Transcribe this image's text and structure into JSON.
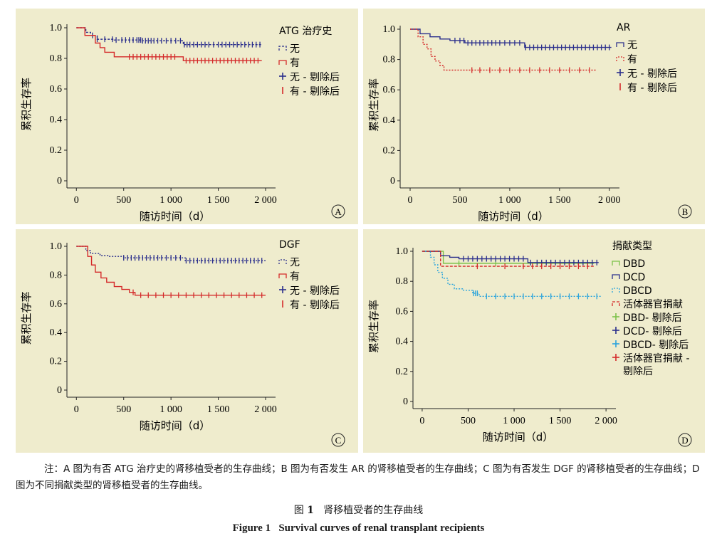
{
  "chart_data": [
    {
      "type": "line",
      "panel_label": "A",
      "ylabel": "累积生存率",
      "xlabel": "随访时间（d）",
      "xticks": [
        "0",
        "500",
        "1 000",
        "1 500",
        "2 000"
      ],
      "yticks": [
        "0",
        "0.2",
        "0.4",
        "0.6",
        "0.8",
        "1.0"
      ],
      "xlim": [
        -100,
        2030
      ],
      "ylim": [
        0,
        1.0
      ],
      "legend_title": "ATG 治疗史",
      "legend_placement": "right",
      "legend": [
        "无",
        "有",
        "无 - 剔除后",
        "有 - 剔除后"
      ],
      "series": [
        {
          "name": "无",
          "color": "#2b2f8c",
          "dash": "3,2",
          "x": [
            0,
            100,
            150,
            220,
            400,
            700,
            1130,
            1960
          ],
          "y": [
            1.0,
            0.97,
            0.95,
            0.925,
            0.92,
            0.915,
            0.89,
            0.89
          ],
          "censored": [
            170,
            220,
            300,
            380,
            420,
            480,
            520,
            560,
            600,
            640,
            660,
            680,
            700,
            730,
            760,
            790,
            820,
            860,
            900,
            950,
            1000,
            1050,
            1100,
            1140,
            1170,
            1200,
            1240,
            1280,
            1320,
            1360,
            1400,
            1450,
            1500,
            1540,
            1580,
            1620,
            1660,
            1700,
            1740,
            1780,
            1820,
            1860,
            1900,
            1940
          ]
        },
        {
          "name": "有",
          "color": "#d42a2a",
          "dash": "",
          "x": [
            0,
            90,
            200,
            250,
            300,
            400,
            1130,
            1960
          ],
          "y": [
            1.0,
            0.95,
            0.9,
            0.87,
            0.84,
            0.81,
            0.785,
            0.785
          ],
          "censored": [
            560,
            600,
            640,
            680,
            720,
            760,
            800,
            840,
            880,
            920,
            960,
            1000,
            1040,
            1160,
            1200,
            1240,
            1280,
            1320,
            1360,
            1400,
            1440,
            1480,
            1520,
            1560,
            1600,
            1640,
            1680,
            1720,
            1760,
            1800,
            1840,
            1880,
            1920
          ]
        }
      ]
    },
    {
      "type": "line",
      "panel_label": "B",
      "ylabel": "累积生存率",
      "xlabel": "随访时间（d）",
      "xticks": [
        "0",
        "500",
        "1 000",
        "1 500",
        "2 000"
      ],
      "yticks": [
        "0",
        "0.2",
        "0.4",
        "0.6",
        "0.8",
        "1.0"
      ],
      "xlim": [
        -100,
        2030
      ],
      "ylim": [
        0,
        1.0
      ],
      "legend_title": "AR",
      "legend_placement": "right",
      "legend": [
        "无",
        "有",
        "无 - 剔除后",
        "有 - 剔除后"
      ],
      "series": [
        {
          "name": "无",
          "color": "#2b2f8c",
          "dash": "",
          "x": [
            0,
            100,
            200,
            300,
            400,
            550,
            1150,
            2020
          ],
          "y": [
            1.0,
            0.97,
            0.95,
            0.935,
            0.925,
            0.91,
            0.88,
            0.88
          ],
          "censored": [
            450,
            500,
            540,
            580,
            620,
            660,
            700,
            740,
            780,
            820,
            860,
            900,
            950,
            1000,
            1050,
            1100,
            1160,
            1200,
            1240,
            1280,
            1320,
            1360,
            1400,
            1440,
            1480,
            1520,
            1560,
            1600,
            1640,
            1680,
            1720,
            1760,
            1800,
            1840,
            1880,
            1920,
            1960,
            2000
          ]
        },
        {
          "name": "有",
          "color": "#d42a2a",
          "dash": "2,2",
          "x": [
            0,
            80,
            130,
            170,
            210,
            250,
            300,
            340,
            1870
          ],
          "y": [
            1.0,
            0.95,
            0.9,
            0.87,
            0.82,
            0.79,
            0.76,
            0.73,
            0.73
          ],
          "censored": [
            620,
            700,
            800,
            900,
            1000,
            1100,
            1200,
            1300,
            1400,
            1500,
            1600,
            1700,
            1800
          ]
        }
      ]
    },
    {
      "type": "line",
      "panel_label": "C",
      "ylabel": "累积生存率",
      "xlabel": "随访时间（d）",
      "xticks": [
        "0",
        "500",
        "1 000",
        "1 500",
        "2 000"
      ],
      "yticks": [
        "0",
        "0.2",
        "0.4",
        "0.6",
        "0.8",
        "1.0"
      ],
      "xlim": [
        -100,
        2030
      ],
      "ylim": [
        0,
        1.0
      ],
      "legend_title": "DGF",
      "legend_placement": "right",
      "legend": [
        "无",
        "有",
        "无 - 剔除后",
        "有 - 剔除后"
      ],
      "series": [
        {
          "name": "无",
          "color": "#2b2f8c",
          "dash": "2,2",
          "x": [
            0,
            100,
            150,
            250,
            350,
            500,
            1150,
            2000
          ],
          "y": [
            1.0,
            0.97,
            0.95,
            0.935,
            0.93,
            0.92,
            0.9,
            0.9
          ],
          "censored": [
            500,
            540,
            580,
            620,
            660,
            700,
            740,
            780,
            820,
            860,
            900,
            950,
            1000,
            1050,
            1100,
            1160,
            1200,
            1240,
            1280,
            1320,
            1360,
            1400,
            1440,
            1480,
            1520,
            1560,
            1600,
            1640,
            1680,
            1720,
            1760,
            1800,
            1840,
            1880,
            1920,
            1960
          ]
        },
        {
          "name": "有",
          "color": "#d42a2a",
          "dash": "",
          "x": [
            0,
            120,
            160,
            200,
            260,
            320,
            400,
            480,
            560,
            620,
            2000
          ],
          "y": [
            1.0,
            0.93,
            0.87,
            0.82,
            0.78,
            0.75,
            0.72,
            0.7,
            0.68,
            0.66,
            0.66
          ],
          "censored": [
            600,
            680,
            760,
            840,
            920,
            1000,
            1080,
            1160,
            1240,
            1320,
            1400,
            1480,
            1560,
            1640,
            1720,
            1800,
            1880,
            1960
          ]
        }
      ]
    },
    {
      "type": "line",
      "panel_label": "D",
      "ylabel": "累积生存率",
      "xlabel": "随访时间（d）",
      "xticks": [
        "0",
        "500",
        "1 000",
        "1 500",
        "2 000"
      ],
      "yticks": [
        "0",
        "0.2",
        "0.4",
        "0.6",
        "0.8",
        "1.0"
      ],
      "xlim": [
        -100,
        2030
      ],
      "ylim": [
        0,
        1.0
      ],
      "legend_title": "捐献类型",
      "legend_placement": "right",
      "legend": [
        "DBD",
        "DCD",
        "DBCD",
        "活体器官捐献",
        "DBD- 剔除后",
        "DCD- 剔除后",
        "DBCD- 剔除后",
        "活体器官捐献 -\n剔除后"
      ],
      "series": [
        {
          "name": "DBD",
          "color": "#7cc14a",
          "dash": "",
          "x": [
            0,
            230,
            1000,
            1150,
            1870
          ],
          "y": [
            1.0,
            0.92,
            0.92,
            0.92,
            0.92
          ],
          "censored": [
            400,
            800,
            1300,
            1600
          ]
        },
        {
          "name": "DCD",
          "color": "#2b2f8c",
          "dash": "",
          "x": [
            0,
            200,
            300,
            400,
            1150,
            1920
          ],
          "y": [
            1.0,
            0.97,
            0.96,
            0.95,
            0.925,
            0.925
          ],
          "censored": [
            450,
            500,
            550,
            600,
            650,
            700,
            750,
            800,
            850,
            900,
            950,
            1000,
            1050,
            1100,
            1180,
            1250,
            1300,
            1350,
            1400,
            1450,
            1500,
            1550,
            1600,
            1650,
            1700,
            1750,
            1800,
            1850,
            1900
          ]
        },
        {
          "name": "DBCD",
          "color": "#2aa4dc",
          "dash": "2,2",
          "x": [
            0,
            90,
            130,
            170,
            220,
            280,
            350,
            450,
            550,
            620,
            1950
          ],
          "y": [
            1.0,
            0.96,
            0.91,
            0.86,
            0.82,
            0.78,
            0.75,
            0.74,
            0.72,
            0.7,
            0.7
          ],
          "censored": [
            560,
            580,
            600,
            700,
            800,
            900,
            1000,
            1100,
            1200,
            1300,
            1400,
            1500,
            1600,
            1700,
            1800,
            1900
          ]
        },
        {
          "name": "活体器官捐献",
          "color": "#d42a2a",
          "dash": "4,2",
          "x": [
            0,
            200,
            1870
          ],
          "y": [
            1.0,
            0.9,
            0.9
          ],
          "censored": [
            600,
            900,
            1100,
            1200,
            1300,
            1400,
            1500,
            1600,
            1700,
            1800
          ]
        }
      ]
    }
  ],
  "note": "注：A 图为有否 ATG 治疗史的肾移植受者的生存曲线；B 图为有否发生 AR 的肾移植受者的生存曲线；C 图为有否发生 DGF 的肾移植受者的生存曲线；D 图为不同捐献类型的肾移植受者的生存曲线。",
  "caption_cn_prefix": "图 ",
  "caption_cn_num": "1",
  "caption_cn_text": "肾移植受者的生存曲线",
  "caption_en_prefix": "Figure 1",
  "caption_en_text": "Survival curves of renal transplant recipients"
}
